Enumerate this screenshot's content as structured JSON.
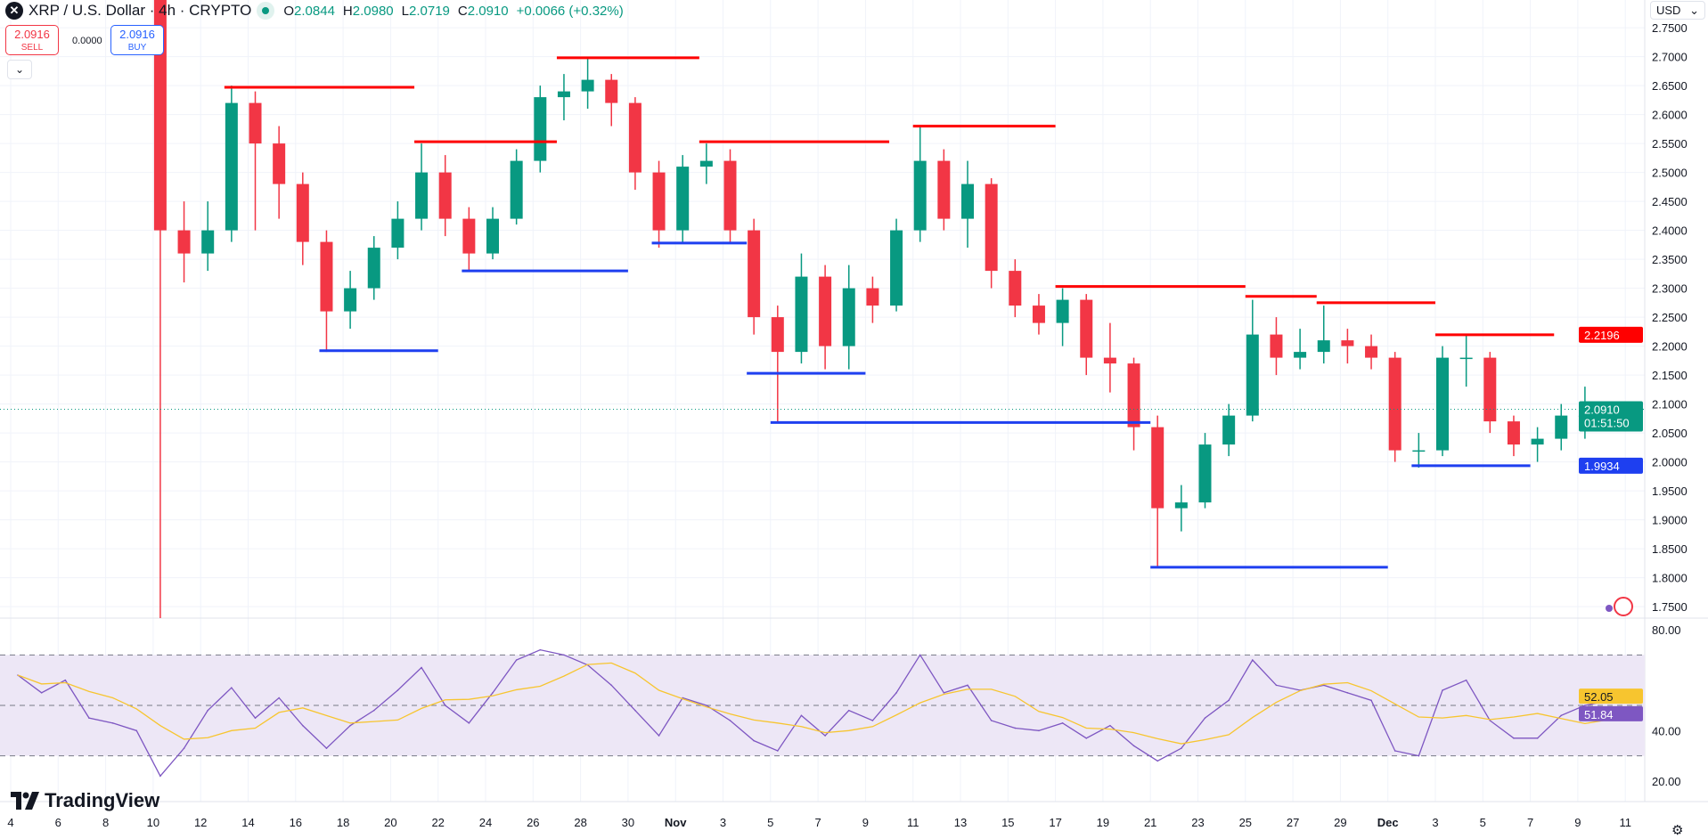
{
  "header": {
    "symbol_icon": "x-logo",
    "title": "XRP / U.S. Dollar · 4h · CRYPTO",
    "status": "market-open-dot",
    "o_label": "O",
    "o": "2.0844",
    "h_label": "H",
    "h": "2.0980",
    "l_label": "L",
    "l": "2.0719",
    "c_label": "C",
    "c": "2.0910",
    "change": "+0.0066 (+0.32%)"
  },
  "trade": {
    "sell_price": "2.0916",
    "sell_label": "SELL",
    "spread": "0.0000",
    "buy_price": "2.0916",
    "buy_label": "BUY"
  },
  "currency": "USD",
  "branding": "TradingView",
  "colors": {
    "up": "#089981",
    "down": "#f23645",
    "resistance": "#ff0000",
    "support": "#1e3ff0",
    "rsi": "#7e57c2",
    "rsi_ma": "#f7c52f",
    "rsi_band": "#ede7f6"
  },
  "chart_data": [
    {
      "type": "candlestick",
      "title": "XRP / U.S. Dollar · 4h · CRYPTO",
      "ylim": [
        1.725,
        2.775
      ],
      "yticks": [
        "2.7500",
        "2.7000",
        "2.6500",
        "2.6000",
        "2.5500",
        "2.5000",
        "2.4500",
        "2.4000",
        "2.3500",
        "2.3000",
        "2.2500",
        "2.2000",
        "2.1500",
        "2.1000",
        "2.0500",
        "2.0000",
        "1.9500",
        "1.9000",
        "1.8500",
        "1.8000",
        "1.7500"
      ],
      "xticks": [
        "4",
        "6",
        "8",
        "10",
        "12",
        "14",
        "16",
        "18",
        "20",
        "22",
        "24",
        "26",
        "28",
        "30",
        "Nov",
        "3",
        "5",
        "7",
        "9",
        "11",
        "13",
        "15",
        "17",
        "19",
        "21",
        "23",
        "25",
        "27",
        "29",
        "Dec",
        "3",
        "5",
        "7",
        "9",
        "11"
      ],
      "candles": [
        [
          "Oct 10",
          2.8,
          2.82,
          1.73,
          2.4
        ],
        [
          "Oct 11",
          2.4,
          2.45,
          2.31,
          2.36
        ],
        [
          "Oct 12",
          2.36,
          2.45,
          2.33,
          2.4
        ],
        [
          "Oct 13",
          2.4,
          2.65,
          2.38,
          2.62
        ],
        [
          "Oct 14",
          2.62,
          2.64,
          2.4,
          2.55
        ],
        [
          "Oct 15",
          2.55,
          2.58,
          2.42,
          2.48
        ],
        [
          "Oct 16",
          2.48,
          2.5,
          2.34,
          2.38
        ],
        [
          "Oct 17",
          2.38,
          2.4,
          2.19,
          2.26
        ],
        [
          "Oct 18",
          2.26,
          2.33,
          2.23,
          2.3
        ],
        [
          "Oct 19",
          2.3,
          2.39,
          2.28,
          2.37
        ],
        [
          "Oct 20",
          2.37,
          2.45,
          2.35,
          2.42
        ],
        [
          "Oct 21",
          2.42,
          2.55,
          2.4,
          2.5
        ],
        [
          "Oct 22",
          2.5,
          2.53,
          2.39,
          2.42
        ],
        [
          "Oct 23",
          2.42,
          2.44,
          2.33,
          2.36
        ],
        [
          "Oct 24",
          2.36,
          2.44,
          2.35,
          2.42
        ],
        [
          "Oct 25",
          2.42,
          2.54,
          2.41,
          2.52
        ],
        [
          "Oct 26",
          2.52,
          2.65,
          2.5,
          2.63
        ],
        [
          "Oct 27",
          2.63,
          2.67,
          2.59,
          2.64
        ],
        [
          "Oct 28",
          2.64,
          2.7,
          2.61,
          2.66
        ],
        [
          "Oct 29",
          2.66,
          2.67,
          2.58,
          2.62
        ],
        [
          "Oct 30",
          2.62,
          2.63,
          2.47,
          2.5
        ],
        [
          "Oct 31",
          2.5,
          2.52,
          2.37,
          2.4
        ],
        [
          "Nov 1",
          2.4,
          2.53,
          2.38,
          2.51
        ],
        [
          "Nov 2",
          2.51,
          2.55,
          2.48,
          2.52
        ],
        [
          "Nov 3",
          2.52,
          2.54,
          2.38,
          2.4
        ],
        [
          "Nov 4",
          2.4,
          2.42,
          2.22,
          2.25
        ],
        [
          "Nov 5",
          2.25,
          2.27,
          2.07,
          2.19
        ],
        [
          "Nov 6",
          2.19,
          2.36,
          2.17,
          2.32
        ],
        [
          "Nov 7",
          2.32,
          2.34,
          2.16,
          2.2
        ],
        [
          "Nov 8",
          2.2,
          2.34,
          2.16,
          2.3
        ],
        [
          "Nov 9",
          2.3,
          2.32,
          2.24,
          2.27
        ],
        [
          "Nov 10",
          2.27,
          2.42,
          2.26,
          2.4
        ],
        [
          "Nov 11",
          2.4,
          2.58,
          2.38,
          2.52
        ],
        [
          "Nov 12",
          2.52,
          2.54,
          2.4,
          2.42
        ],
        [
          "Nov 13",
          2.42,
          2.52,
          2.37,
          2.48
        ],
        [
          "Nov 14",
          2.48,
          2.49,
          2.3,
          2.33
        ],
        [
          "Nov 15",
          2.33,
          2.35,
          2.25,
          2.27
        ],
        [
          "Nov 16",
          2.27,
          2.29,
          2.22,
          2.24
        ],
        [
          "Nov 17",
          2.24,
          2.3,
          2.2,
          2.28
        ],
        [
          "Nov 18",
          2.28,
          2.29,
          2.15,
          2.18
        ],
        [
          "Nov 19",
          2.18,
          2.24,
          2.12,
          2.17
        ],
        [
          "Nov 20",
          2.17,
          2.18,
          2.02,
          2.06
        ],
        [
          "Nov 21",
          2.06,
          2.08,
          1.82,
          1.92
        ],
        [
          "Nov 22",
          1.92,
          1.96,
          1.88,
          1.93
        ],
        [
          "Nov 23",
          1.93,
          2.05,
          1.92,
          2.03
        ],
        [
          "Nov 24",
          2.03,
          2.1,
          2.01,
          2.08
        ],
        [
          "Nov 25",
          2.08,
          2.28,
          2.07,
          2.22
        ],
        [
          "Nov 26",
          2.22,
          2.25,
          2.15,
          2.18
        ],
        [
          "Nov 27",
          2.18,
          2.23,
          2.16,
          2.19
        ],
        [
          "Nov 28",
          2.19,
          2.27,
          2.17,
          2.21
        ],
        [
          "Nov 29",
          2.21,
          2.23,
          2.17,
          2.2
        ],
        [
          "Nov 30",
          2.2,
          2.22,
          2.16,
          2.18
        ],
        [
          "Dec 1",
          2.18,
          2.19,
          2.0,
          2.02
        ],
        [
          "Dec 2",
          2.02,
          2.05,
          1.99,
          2.02
        ],
        [
          "Dec 3",
          2.02,
          2.2,
          2.01,
          2.18
        ],
        [
          "Dec 4",
          2.18,
          2.22,
          2.13,
          2.18
        ],
        [
          "Dec 5",
          2.18,
          2.19,
          2.05,
          2.07
        ],
        [
          "Dec 6",
          2.07,
          2.08,
          2.01,
          2.03
        ],
        [
          "Dec 7",
          2.03,
          2.06,
          2.0,
          2.04
        ],
        [
          "Dec 8",
          2.04,
          2.1,
          2.02,
          2.08
        ],
        [
          "Dec 9",
          2.08,
          2.13,
          2.04,
          2.08
        ],
        [
          "Dec 10",
          2.08,
          2.1,
          2.07,
          2.091
        ]
      ],
      "resistance_lines": [
        [
          "Oct 13",
          "Oct 21",
          2.647
        ],
        [
          "Oct 21",
          "Oct 27",
          2.553
        ],
        [
          "Oct 27",
          "Nov 2",
          2.698
        ],
        [
          "Nov 2",
          "Nov 10",
          2.553
        ],
        [
          "Nov 11",
          "Nov 17",
          2.58
        ],
        [
          "Nov 17",
          "Nov 25",
          2.303
        ],
        [
          "Nov 25",
          "Nov 28",
          2.286
        ],
        [
          "Nov 28",
          "Dec 3",
          2.275
        ],
        [
          "Dec 3",
          "Dec 8",
          2.2196
        ]
      ],
      "support_lines": [
        [
          "Oct 17",
          "Oct 22",
          2.192
        ],
        [
          "Oct 23",
          "Oct 30",
          2.33
        ],
        [
          "Oct 31",
          "Nov 4",
          2.378
        ],
        [
          "Nov 4",
          "Nov 9",
          2.153
        ],
        [
          "Nov 5",
          "Nov 21",
          2.068
        ],
        [
          "Nov 21",
          "Dec 1",
          1.818
        ],
        [
          "Dec 2",
          "Dec 7",
          1.9934
        ]
      ],
      "price_labels": {
        "resistance": "2.2196",
        "last": "2.0910",
        "countdown": "01:51:50",
        "support": "1.9934"
      }
    },
    {
      "type": "line",
      "title": "",
      "ylim": [
        15,
        85
      ],
      "yticks": [
        "80.00",
        "40.00",
        "20.00"
      ],
      "bands": [
        30,
        50,
        70
      ],
      "series": [
        {
          "values": [
            [
              "Oct 4",
              62
            ],
            [
              "Oct 5",
              55
            ],
            [
              "Oct 6",
              60
            ],
            [
              "Oct 7",
              45
            ],
            [
              "Oct 8",
              43
            ],
            [
              "Oct 9",
              40
            ],
            [
              "Oct 10",
              22
            ],
            [
              "Oct 11",
              33
            ],
            [
              "Oct 12",
              48
            ],
            [
              "Oct 13",
              57
            ],
            [
              "Oct 14",
              45
            ],
            [
              "Oct 15",
              53
            ],
            [
              "Oct 16",
              42
            ],
            [
              "Oct 17",
              33
            ],
            [
              "Oct 18",
              42
            ],
            [
              "Oct 19",
              48
            ],
            [
              "Oct 20",
              56
            ],
            [
              "Oct 21",
              65
            ],
            [
              "Oct 22",
              50
            ],
            [
              "Oct 23",
              43
            ],
            [
              "Oct 24",
              55
            ],
            [
              "Oct 25",
              68
            ],
            [
              "Oct 26",
              72
            ],
            [
              "Oct 27",
              70
            ],
            [
              "Oct 28",
              66
            ],
            [
              "Oct 29",
              58
            ],
            [
              "Oct 30",
              48
            ],
            [
              "Oct 31",
              38
            ],
            [
              "Nov 1",
              53
            ],
            [
              "Nov 2",
              50
            ],
            [
              "Nov 3",
              44
            ],
            [
              "Nov 4",
              36
            ],
            [
              "Nov 5",
              32
            ],
            [
              "Nov 6",
              46
            ],
            [
              "Nov 7",
              38
            ],
            [
              "Nov 8",
              48
            ],
            [
              "Nov 9",
              44
            ],
            [
              "Nov 10",
              55
            ],
            [
              "Nov 11",
              70
            ],
            [
              "Nov 12",
              55
            ],
            [
              "Nov 13",
              58
            ],
            [
              "Nov 14",
              44
            ],
            [
              "Nov 15",
              41
            ],
            [
              "Nov 16",
              40
            ],
            [
              "Nov 17",
              43
            ],
            [
              "Nov 18",
              37
            ],
            [
              "Nov 19",
              42
            ],
            [
              "Nov 20",
              34
            ],
            [
              "Nov 21",
              28
            ],
            [
              "Nov 22",
              33
            ],
            [
              "Nov 23",
              45
            ],
            [
              "Nov 24",
              52
            ],
            [
              "Nov 25",
              68
            ],
            [
              "Nov 26",
              58
            ],
            [
              "Nov 27",
              56
            ],
            [
              "Nov 28",
              58
            ],
            [
              "Nov 29",
              55
            ],
            [
              "Nov 30",
              52
            ],
            [
              "Dec 1",
              32
            ],
            [
              "Dec 2",
              30
            ],
            [
              "Dec 3",
              56
            ],
            [
              "Dec 4",
              60
            ],
            [
              "Dec 5",
              44
            ],
            [
              "Dec 6",
              37
            ],
            [
              "Dec 7",
              37
            ],
            [
              "Dec 8",
              46
            ],
            [
              "Dec 9",
              50
            ],
            [
              "Dec 10",
              51.84
            ]
          ]
        }
      ],
      "labels": {
        "rsi_ma": "52.05",
        "rsi": "51.84"
      }
    }
  ]
}
